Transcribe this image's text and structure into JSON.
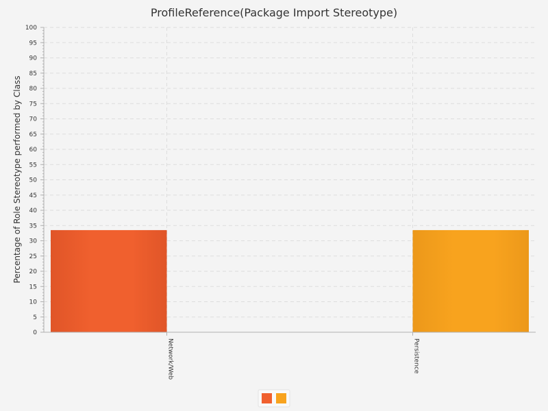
{
  "chart_data": {
    "type": "bar",
    "title": "ProfileReference(Package Import Stereotype)",
    "xlabel": "",
    "ylabel": "Percentage of Role Stereotype performed by Class",
    "categories": [
      "Network/Web",
      "Persistence"
    ],
    "series": [
      {
        "values": [
          33.5,
          0
        ]
      },
      {
        "values": [
          0,
          33.5
        ]
      }
    ],
    "ylim": [
      0,
      100
    ],
    "y_major_step": 5,
    "grid": true,
    "legend_position": "bottom-center"
  },
  "colors": {
    "background": "#f4f4f4",
    "grid": "#dddddd",
    "axis": "#b0b0b0",
    "series": [
      "#f0602e",
      "#f8a31e"
    ],
    "series_shade": [
      "#e05528",
      "#ec981a"
    ]
  }
}
